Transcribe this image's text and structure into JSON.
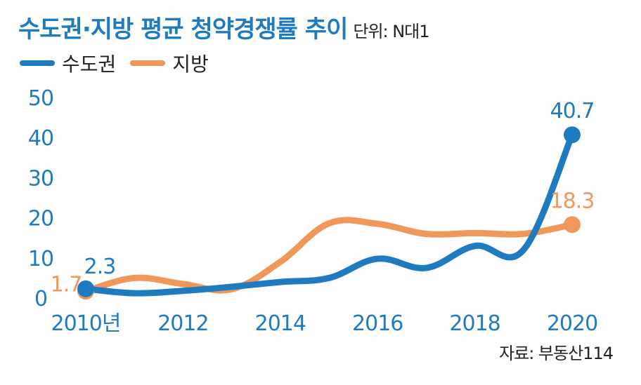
{
  "title": "수도권·지방 평균 청약경쟁률 추이",
  "unit": "단위: N대1",
  "source": "자료: 부동산114",
  "colors": {
    "metro": "#1e7bc0",
    "local": "#f0975a"
  },
  "chart_data": {
    "type": "line",
    "title": "수도권·지방 평균 청약경쟁률 추이",
    "ylim": [
      0,
      50
    ],
    "xlim": [
      2010,
      2020
    ],
    "y_ticks": [
      "0",
      "10",
      "20",
      "30",
      "40",
      "50"
    ],
    "x_ticks": [
      {
        "value": 2010,
        "label": "2010년"
      },
      {
        "value": 2012,
        "label": "2012"
      },
      {
        "value": 2014,
        "label": "2014"
      },
      {
        "value": 2016,
        "label": "2016"
      },
      {
        "value": 2018,
        "label": "2018"
      },
      {
        "value": 2020,
        "label": "2020"
      }
    ],
    "legend_position": "top-left",
    "grid": false,
    "x": [
      2010,
      2011,
      2012,
      2013,
      2014,
      2015,
      2016,
      2017,
      2018,
      2019,
      2020
    ],
    "series": [
      {
        "name": "수도권",
        "color": "#1e7bc0",
        "values": [
          2.3,
          1.2,
          1.8,
          2.8,
          4.0,
          5.0,
          9.8,
          7.5,
          13.0,
          12.0,
          40.7
        ]
      },
      {
        "name": "지방",
        "color": "#f0975a",
        "values": [
          1.7,
          5.0,
          3.5,
          2.2,
          9.0,
          18.6,
          18.5,
          16.0,
          16.2,
          16.0,
          18.3
        ]
      }
    ],
    "annotations": [
      {
        "series": 0,
        "x": 2010,
        "label": "2.3"
      },
      {
        "series": 0,
        "x": 2020,
        "label": "40.7"
      },
      {
        "series": 1,
        "x": 2010,
        "label": "1.7"
      },
      {
        "series": 1,
        "x": 2020,
        "label": "18.3"
      }
    ]
  }
}
